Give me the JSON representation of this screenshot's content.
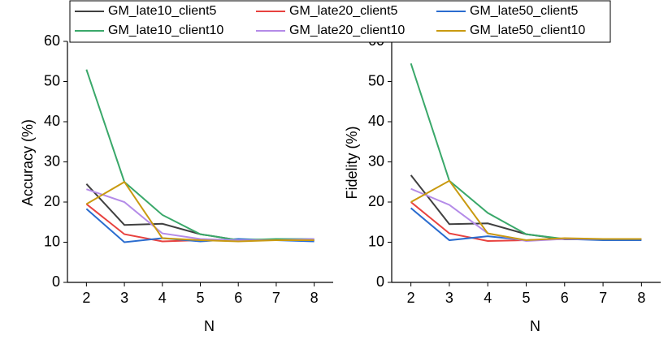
{
  "chart_data": [
    {
      "type": "line",
      "x_label": "N",
      "y_label": "Accuracy (%)",
      "x": [
        2,
        3,
        4,
        5,
        6,
        7,
        8
      ],
      "xlim": [
        1.5,
        8.5
      ],
      "xticks": [
        2,
        3,
        4,
        5,
        6,
        7,
        8
      ],
      "ylim": [
        0,
        60
      ],
      "yticks": [
        0,
        10,
        20,
        30,
        40,
        50,
        60
      ],
      "series": [
        {
          "name": "GM_late10_client5",
          "color": "#404040",
          "values": [
            24.5,
            14.3,
            14.6,
            12,
            10.5,
            10.5,
            10.5
          ]
        },
        {
          "name": "GM_late20_client5",
          "color": "#e8423f",
          "values": [
            19.5,
            12,
            10.2,
            10.5,
            10.5,
            10.5,
            10.5
          ]
        },
        {
          "name": "GM_late50_client5",
          "color": "#2a6ccf",
          "values": [
            18.3,
            10,
            11,
            10.2,
            10.8,
            10.5,
            10.2
          ]
        },
        {
          "name": "GM_late10_client10",
          "color": "#3aa86a",
          "values": [
            53,
            25,
            16.8,
            12,
            10.5,
            10.8,
            10.8
          ]
        },
        {
          "name": "GM_late20_client10",
          "color": "#b48be8",
          "values": [
            23.2,
            20,
            12.2,
            10.8,
            10.5,
            10.5,
            10.8
          ]
        },
        {
          "name": "GM_late50_client10",
          "color": "#c99a10",
          "values": [
            19.5,
            25,
            11,
            10.5,
            10.2,
            10.5,
            10.5
          ]
        }
      ]
    },
    {
      "type": "line",
      "x_label": "N",
      "y_label": "Fidelity (%)",
      "x": [
        2,
        3,
        4,
        5,
        6,
        7,
        8
      ],
      "xlim": [
        1.5,
        8.5
      ],
      "xticks": [
        2,
        3,
        4,
        5,
        6,
        7,
        8
      ],
      "ylim": [
        0,
        60
      ],
      "yticks": [
        0,
        10,
        20,
        30,
        40,
        50,
        60
      ],
      "series": [
        {
          "name": "GM_late10_client5",
          "color": "#404040",
          "values": [
            26.7,
            14.5,
            14.7,
            12,
            10.7,
            10.7,
            10.7
          ]
        },
        {
          "name": "GM_late20_client5",
          "color": "#e8423f",
          "values": [
            20,
            12.2,
            10.3,
            10.5,
            10.8,
            10.8,
            10.8
          ]
        },
        {
          "name": "GM_late50_client5",
          "color": "#2a6ccf",
          "values": [
            18.5,
            10.5,
            11.5,
            10.5,
            10.8,
            10.5,
            10.5
          ]
        },
        {
          "name": "GM_late10_client10",
          "color": "#3aa86a",
          "values": [
            54.5,
            25.3,
            17.3,
            12,
            10.8,
            10.8,
            10.8
          ]
        },
        {
          "name": "GM_late20_client10",
          "color": "#b48be8",
          "values": [
            23.3,
            19.3,
            12.2,
            10.3,
            10.8,
            10.8,
            10.8
          ]
        },
        {
          "name": "GM_late50_client10",
          "color": "#c99a10",
          "values": [
            20,
            25.3,
            12.2,
            10.5,
            11,
            10.8,
            10.8
          ]
        }
      ]
    }
  ]
}
